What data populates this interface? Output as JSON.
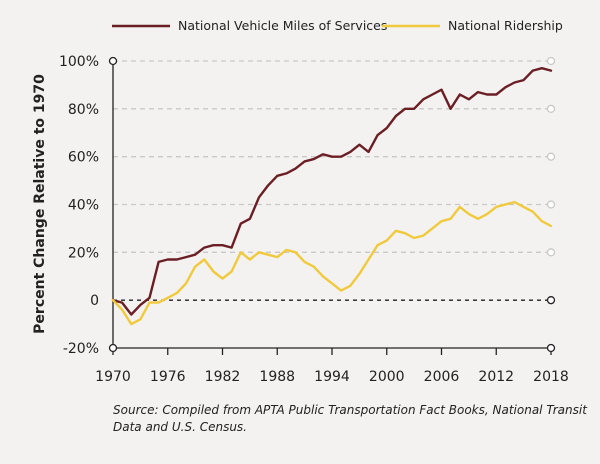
{
  "chart_data": {
    "type": "line",
    "title": "",
    "xlabel": "",
    "ylabel": "Percent Change Relative to 1970",
    "xlim": [
      1970,
      2018
    ],
    "ylim": [
      -20,
      100
    ],
    "x_ticks": [
      "1970",
      "1976",
      "1982",
      "1988",
      "1994",
      "2000",
      "2006",
      "2012",
      "2018"
    ],
    "y_ticks": [
      "-20%",
      "0",
      "20%",
      "40%",
      "60%",
      "80%",
      "100%"
    ],
    "grid": "horizontal dashed",
    "legend_position": "top",
    "series": [
      {
        "name": "National Vehicle Miles of Services",
        "color": "#6b1f25",
        "x": [
          1970,
          1971,
          1972,
          1973,
          1974,
          1975,
          1976,
          1977,
          1978,
          1979,
          1980,
          1981,
          1982,
          1983,
          1984,
          1985,
          1986,
          1987,
          1988,
          1989,
          1990,
          1991,
          1992,
          1993,
          1994,
          1995,
          1996,
          1997,
          1998,
          1999,
          2000,
          2001,
          2002,
          2003,
          2004,
          2005,
          2006,
          2007,
          2008,
          2009,
          2010,
          2011,
          2012,
          2013,
          2014,
          2015,
          2016,
          2017,
          2018
        ],
        "values": [
          0,
          -1,
          -6,
          -2,
          1,
          16,
          17,
          17,
          18,
          19,
          22,
          23,
          23,
          22,
          32,
          34,
          43,
          48,
          52,
          53,
          55,
          58,
          59,
          61,
          60,
          60,
          62,
          65,
          62,
          69,
          72,
          77,
          80,
          80,
          84,
          86,
          88,
          80,
          86,
          84,
          87,
          86,
          86,
          89,
          91,
          92,
          96,
          97,
          96
        ]
      },
      {
        "name": "National Ridership",
        "color": "#f0c93c",
        "x": [
          1970,
          1971,
          1972,
          1973,
          1974,
          1975,
          1976,
          1977,
          1978,
          1979,
          1980,
          1981,
          1982,
          1983,
          1984,
          1985,
          1986,
          1987,
          1988,
          1989,
          1990,
          1991,
          1992,
          1993,
          1994,
          1995,
          1996,
          1997,
          1998,
          1999,
          2000,
          2001,
          2002,
          2003,
          2004,
          2005,
          2006,
          2007,
          2008,
          2009,
          2010,
          2011,
          2012,
          2013,
          2014,
          2015,
          2016,
          2017,
          2018
        ],
        "values": [
          0,
          -4,
          -10,
          -8,
          -1,
          -1,
          1,
          3,
          7,
          14,
          17,
          12,
          9,
          12,
          20,
          17,
          20,
          19,
          18,
          21,
          20,
          16,
          14,
          10,
          7,
          4,
          6,
          11,
          17,
          23,
          25,
          29,
          28,
          26,
          27,
          30,
          33,
          34,
          39,
          36,
          34,
          36,
          39,
          40,
          41,
          39,
          37,
          33,
          31
        ]
      }
    ]
  },
  "source_note": [
    "Source: Compiled from APTA Public Transportation Fact Books, National Transit",
    "Data and U.S. Census."
  ]
}
